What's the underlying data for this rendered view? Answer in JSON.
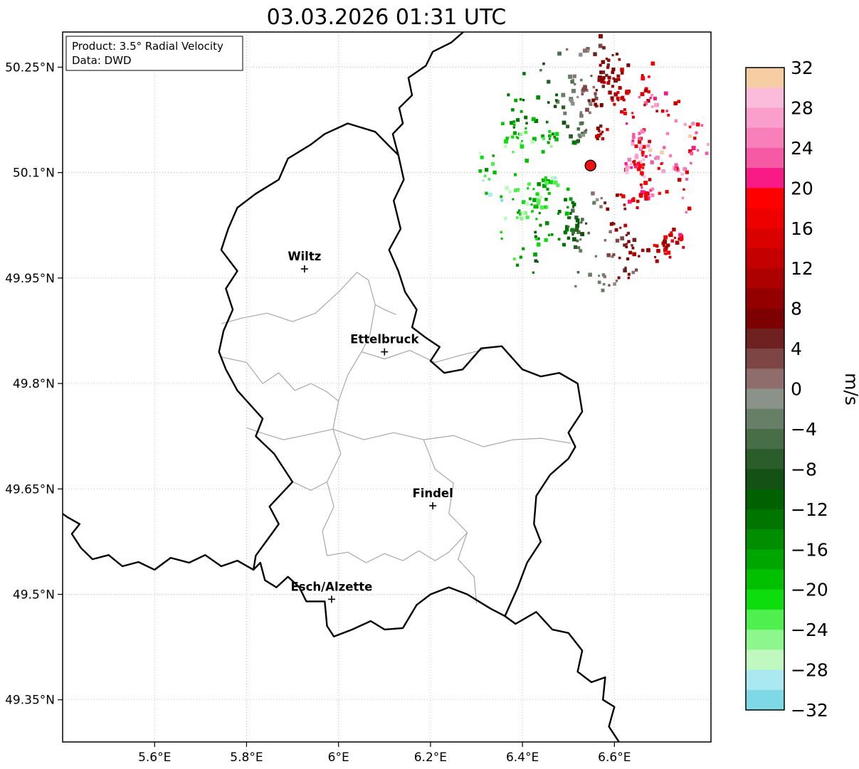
{
  "title": "03.03.2026 01:31 UTC",
  "info_box": {
    "line1": "Product: 3.5° Radial Velocity",
    "line2": "Data: DWD"
  },
  "axes": {
    "lon_range": [
      5.4,
      6.81
    ],
    "lat_range": [
      49.29,
      50.3
    ],
    "x_ticks": [
      {
        "lon": 5.6,
        "label": "5.6°E"
      },
      {
        "lon": 5.8,
        "label": "5.8°E"
      },
      {
        "lon": 6.0,
        "label": "6°E"
      },
      {
        "lon": 6.2,
        "label": "6.2°E"
      },
      {
        "lon": 6.4,
        "label": "6.4°E"
      },
      {
        "lon": 6.6,
        "label": "6.6°E"
      }
    ],
    "y_ticks": [
      {
        "lat": 50.25,
        "label": "50.25°N"
      },
      {
        "lat": 50.1,
        "label": "50.1°N"
      },
      {
        "lat": 49.95,
        "label": "49.95°N"
      },
      {
        "lat": 49.8,
        "label": "49.8°N"
      },
      {
        "lat": 49.65,
        "label": "49.65°N"
      },
      {
        "lat": 49.5,
        "label": "49.5°N"
      },
      {
        "lat": 49.35,
        "label": "49.35°N"
      }
    ]
  },
  "colorbar": {
    "unit": "m/s",
    "vmax": 32,
    "vmin": -32,
    "segment_step": 2,
    "tick_step": 4,
    "tick_labels": [
      "32",
      "28",
      "24",
      "20",
      "16",
      "12",
      "8",
      "4",
      "0",
      "−4",
      "−8",
      "−12",
      "−16",
      "−20",
      "−24",
      "−28",
      "−32"
    ],
    "colors_top_to_bottom": [
      "#f7cda4",
      "#fbbcdb",
      "#fa9fcb",
      "#f87fba",
      "#f65aa5",
      "#fa1a86",
      "#ff0000",
      "#ef0000",
      "#db0000",
      "#c40000",
      "#ad0000",
      "#940000",
      "#7d0101",
      "#6f2121",
      "#7e4545",
      "#8f6d6d",
      "#8a928a",
      "#667f66",
      "#476e47",
      "#2b5d2b",
      "#145114",
      "#006100",
      "#007500",
      "#008d00",
      "#00a600",
      "#00c000",
      "#0ddd0d",
      "#4fef4f",
      "#8df78d",
      "#c0f9c0",
      "#abe9f1",
      "#7fd8e6"
    ]
  },
  "chart_data": {
    "type": "map-radar-radial-velocity",
    "cities": [
      {
        "name": "Wiltz",
        "lon": 5.926,
        "lat": 49.963
      },
      {
        "name": "Ettelbruck",
        "lon": 6.1,
        "lat": 49.845
      },
      {
        "name": "Findel",
        "lon": 6.205,
        "lat": 49.626
      },
      {
        "name": "Esch/Alzette",
        "lon": 5.985,
        "lat": 49.493
      }
    ],
    "radar_site": {
      "lon": 6.548,
      "lat": 50.11,
      "marker_color": "#ee1111"
    },
    "radar_scatter": {
      "seed": 12,
      "clusters": 52,
      "singles": 130,
      "inner_radius_px": 40,
      "outer_radius_px": 158,
      "y_stretch": 1.1,
      "max_velocity_ms": 23,
      "phase_rad": 0.15
    },
    "country_borders": [
      [
        [
          6.02,
          50.17
        ],
        [
          6.08,
          50.158
        ],
        [
          6.11,
          50.138
        ],
        [
          6.13,
          50.125
        ],
        [
          6.142,
          50.09
        ],
        [
          6.12,
          50.06
        ],
        [
          6.135,
          50.02
        ],
        [
          6.11,
          49.99
        ],
        [
          6.13,
          49.96
        ],
        [
          6.145,
          49.93
        ],
        [
          6.17,
          49.905
        ],
        [
          6.16,
          49.88
        ],
        [
          6.19,
          49.865
        ],
        [
          6.22,
          49.852
        ],
        [
          6.2,
          49.832
        ],
        [
          6.23,
          49.815
        ],
        [
          6.27,
          49.82
        ],
        [
          6.31,
          49.85
        ],
        [
          6.355,
          49.853
        ],
        [
          6.4,
          49.82
        ],
        [
          6.44,
          49.81
        ],
        [
          6.48,
          49.815
        ],
        [
          6.52,
          49.8
        ],
        [
          6.53,
          49.76
        ],
        [
          6.5,
          49.73
        ],
        [
          6.515,
          49.71
        ],
        [
          6.5,
          49.693
        ],
        [
          6.46,
          49.67
        ],
        [
          6.43,
          49.64
        ],
        [
          6.425,
          49.6
        ],
        [
          6.44,
          49.575
        ],
        [
          6.41,
          49.545
        ],
        [
          6.39,
          49.51
        ],
        [
          6.362,
          49.469
        ],
        [
          6.33,
          49.48
        ],
        [
          6.28,
          49.5
        ],
        [
          6.24,
          49.51
        ],
        [
          6.2,
          49.5
        ],
        [
          6.17,
          49.485
        ],
        [
          6.14,
          49.452
        ],
        [
          6.1,
          49.45
        ],
        [
          6.07,
          49.462
        ],
        [
          6.03,
          49.45
        ],
        [
          5.99,
          49.44
        ],
        [
          5.975,
          49.455
        ],
        [
          5.97,
          49.49
        ],
        [
          5.93,
          49.49
        ],
        [
          5.915,
          49.51
        ],
        [
          5.89,
          49.525
        ],
        [
          5.865,
          49.51
        ],
        [
          5.84,
          49.52
        ],
        [
          5.83,
          49.545
        ],
        [
          5.815,
          49.535
        ],
        [
          5.82,
          49.555
        ],
        [
          5.87,
          49.6
        ],
        [
          5.85,
          49.625
        ],
        [
          5.9,
          49.66
        ],
        [
          5.86,
          49.7
        ],
        [
          5.82,
          49.725
        ],
        [
          5.835,
          49.75
        ],
        [
          5.78,
          49.79
        ],
        [
          5.755,
          49.82
        ],
        [
          5.74,
          49.845
        ],
        [
          5.75,
          49.875
        ],
        [
          5.77,
          49.905
        ],
        [
          5.755,
          49.935
        ],
        [
          5.78,
          49.96
        ],
        [
          5.745,
          49.99
        ],
        [
          5.76,
          50.02
        ],
        [
          5.78,
          50.05
        ],
        [
          5.82,
          50.07
        ],
        [
          5.87,
          50.09
        ],
        [
          5.89,
          50.12
        ],
        [
          5.94,
          50.14
        ],
        [
          5.97,
          50.155
        ],
        [
          6.02,
          50.17
        ]
      ],
      [
        [
          6.13,
          50.125
        ],
        [
          6.118,
          50.155
        ],
        [
          6.14,
          50.17
        ],
        [
          6.132,
          50.192
        ],
        [
          6.16,
          50.21
        ],
        [
          6.152,
          50.235
        ],
        [
          6.19,
          50.252
        ],
        [
          6.205,
          50.272
        ],
        [
          6.245,
          50.285
        ],
        [
          6.28,
          50.305
        ]
      ],
      [
        [
          6.362,
          49.469
        ],
        [
          6.385,
          49.458
        ],
        [
          6.43,
          49.475
        ],
        [
          6.465,
          49.45
        ],
        [
          6.5,
          49.445
        ],
        [
          6.53,
          49.42
        ],
        [
          6.52,
          49.39
        ],
        [
          6.55,
          49.375
        ],
        [
          6.58,
          49.382
        ],
        [
          6.575,
          49.35
        ],
        [
          6.6,
          49.34
        ],
        [
          6.588,
          49.312
        ],
        [
          6.615,
          49.285
        ]
      ],
      [
        [
          5.815,
          49.535
        ],
        [
          5.78,
          49.548
        ],
        [
          5.745,
          49.54
        ],
        [
          5.71,
          49.556
        ],
        [
          5.675,
          49.545
        ],
        [
          5.635,
          49.552
        ],
        [
          5.6,
          49.535
        ],
        [
          5.565,
          49.546
        ],
        [
          5.53,
          49.54
        ],
        [
          5.5,
          49.556
        ],
        [
          5.465,
          49.55
        ],
        [
          5.44,
          49.566
        ],
        [
          5.42,
          49.586
        ],
        [
          5.437,
          49.6
        ],
        [
          5.41,
          49.61
        ],
        [
          5.395,
          49.617
        ]
      ]
    ],
    "district_borders": [
      [
        [
          5.745,
          49.885
        ],
        [
          5.79,
          49.893
        ],
        [
          5.845,
          49.9
        ],
        [
          5.9,
          49.888
        ],
        [
          5.95,
          49.9
        ],
        [
          6.0,
          49.93
        ],
        [
          6.04,
          49.958
        ],
        [
          6.065,
          49.947
        ],
        [
          6.08,
          49.912
        ],
        [
          6.1,
          49.905
        ],
        [
          6.125,
          49.898
        ]
      ],
      [
        [
          6.08,
          49.912
        ],
        [
          6.068,
          49.868
        ],
        [
          6.05,
          49.845
        ],
        [
          6.02,
          49.812
        ],
        [
          6.0,
          49.775
        ],
        [
          5.988,
          49.735
        ],
        [
          6.005,
          49.7
        ],
        [
          5.975,
          49.66
        ],
        [
          5.99,
          49.625
        ],
        [
          5.965,
          49.59
        ],
        [
          5.975,
          49.555
        ]
      ],
      [
        [
          5.742,
          49.838
        ],
        [
          5.8,
          49.83
        ],
        [
          5.835,
          49.8
        ],
        [
          5.87,
          49.815
        ],
        [
          5.905,
          49.79
        ],
        [
          5.94,
          49.8
        ],
        [
          5.975,
          49.788
        ],
        [
          6.0,
          49.775
        ]
      ],
      [
        [
          5.8,
          49.737
        ],
        [
          5.84,
          49.728
        ],
        [
          5.88,
          49.72
        ],
        [
          5.925,
          49.726
        ],
        [
          5.988,
          49.735
        ],
        [
          6.055,
          49.72
        ],
        [
          6.12,
          49.73
        ],
        [
          6.185,
          49.72
        ],
        [
          6.25,
          49.726
        ],
        [
          6.315,
          49.71
        ],
        [
          6.38,
          49.72
        ],
        [
          6.44,
          49.722
        ],
        [
          6.505,
          49.715
        ]
      ],
      [
        [
          6.05,
          49.845
        ],
        [
          6.1,
          49.835
        ],
        [
          6.155,
          49.847
        ],
        [
          6.21,
          49.83
        ],
        [
          6.265,
          49.84
        ],
        [
          6.315,
          49.848
        ]
      ],
      [
        [
          6.185,
          49.72
        ],
        [
          6.21,
          49.678
        ],
        [
          6.25,
          49.658
        ],
        [
          6.24,
          49.615
        ],
        [
          6.28,
          49.588
        ],
        [
          6.26,
          49.55
        ],
        [
          6.295,
          49.525
        ],
        [
          6.3,
          49.487
        ]
      ],
      [
        [
          5.895,
          49.662
        ],
        [
          5.94,
          49.648
        ],
        [
          5.975,
          49.66
        ]
      ],
      [
        [
          5.975,
          49.555
        ],
        [
          6.02,
          49.56
        ],
        [
          6.06,
          49.545
        ],
        [
          6.1,
          49.558
        ],
        [
          6.14,
          49.548
        ],
        [
          6.175,
          49.562
        ],
        [
          6.21,
          49.548
        ],
        [
          6.24,
          49.56
        ],
        [
          6.28,
          49.588
        ]
      ]
    ]
  }
}
